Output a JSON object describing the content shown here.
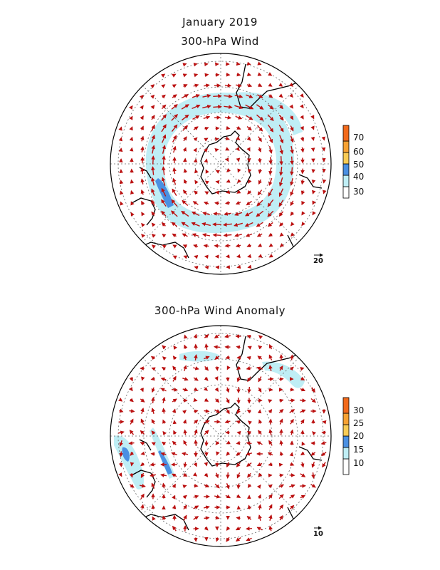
{
  "titles": {
    "month": "January 2019",
    "top_panel": "300-hPa Wind",
    "bottom_panel": "300-hPa Wind Anomaly"
  },
  "colors": {
    "arrow": "#bb1111",
    "coast": "#000000",
    "grid": "#666666",
    "scale": [
      "#ffffff",
      "#bfeef5",
      "#4a90e2",
      "#f8cc55",
      "#f7a233",
      "#f26a1b"
    ]
  },
  "top_panel": {
    "colorbar_ticks": [
      "30",
      "40",
      "50",
      "60",
      "70"
    ],
    "reference_vector": "20"
  },
  "bottom_panel": {
    "colorbar_ticks": [
      "10",
      "15",
      "20",
      "25",
      "30"
    ],
    "reference_vector": "10"
  }
}
